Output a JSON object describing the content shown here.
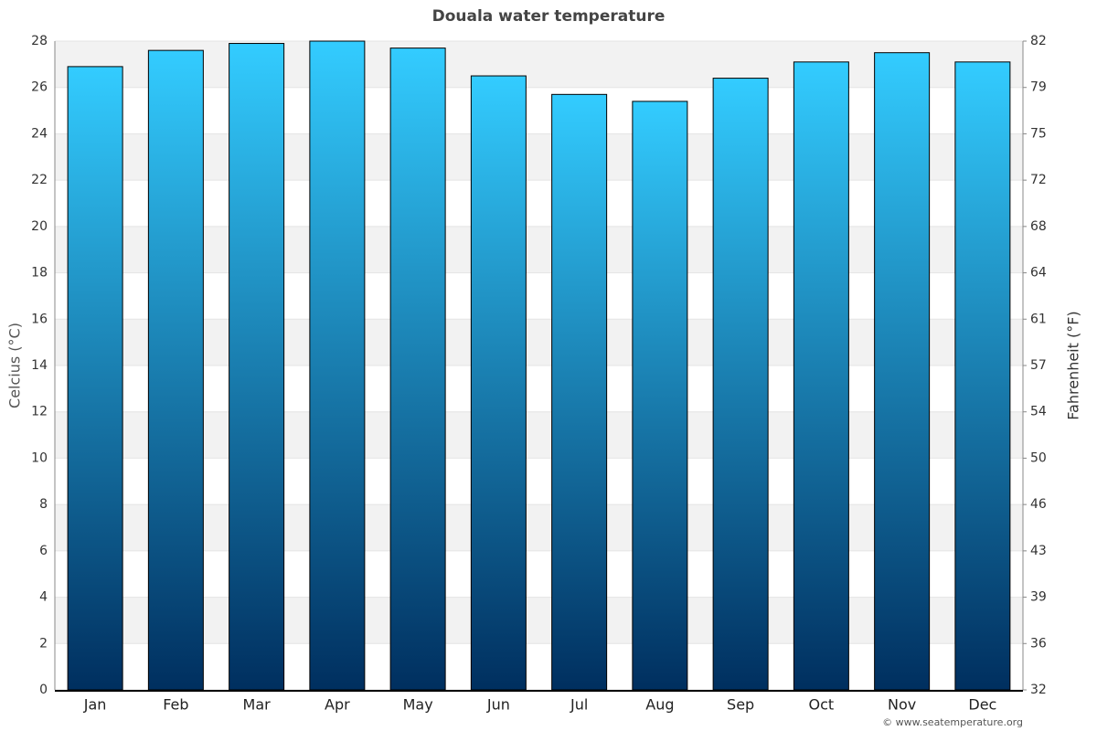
{
  "chart_data": {
    "type": "bar",
    "title": "Douala water temperature",
    "y_label": "Celcius (°C)",
    "y2_label": "Fahrenheit (°F)",
    "categories": [
      "Jan",
      "Feb",
      "Mar",
      "Apr",
      "May",
      "Jun",
      "Jul",
      "Aug",
      "Sep",
      "Oct",
      "Nov",
      "Dec"
    ],
    "values": [
      26.9,
      27.6,
      27.9,
      28.0,
      27.7,
      26.5,
      25.7,
      25.4,
      26.4,
      27.1,
      27.5,
      27.1
    ],
    "gradient": [
      "#33ccff",
      "#002f5f"
    ],
    "ylim": [
      0,
      28
    ],
    "yticks": [
      0,
      2,
      4,
      6,
      8,
      10,
      12,
      14,
      16,
      18,
      20,
      22,
      24,
      26,
      28
    ],
    "y2lim": [
      32,
      82.4
    ],
    "y2ticks": [
      32,
      {
        "value": 35.6,
        "label": "36"
      },
      {
        "value": 39.2,
        "label": "39"
      },
      {
        "value": 42.8,
        "label": "43"
      },
      {
        "value": 46.4,
        "label": "46"
      },
      50,
      {
        "value": 53.6,
        "label": "54"
      },
      {
        "value": 57.2,
        "label": "57"
      },
      {
        "value": 60.8,
        "label": "61"
      },
      {
        "value": 64.4,
        "label": "64"
      },
      68,
      {
        "value": 71.6,
        "label": "72"
      },
      {
        "value": 75.2,
        "label": "75"
      },
      {
        "value": 78.8,
        "label": "79"
      },
      {
        "value": 82.4,
        "label": "82"
      }
    ],
    "grid": true,
    "credit": "© www.seatemperature.org"
  }
}
